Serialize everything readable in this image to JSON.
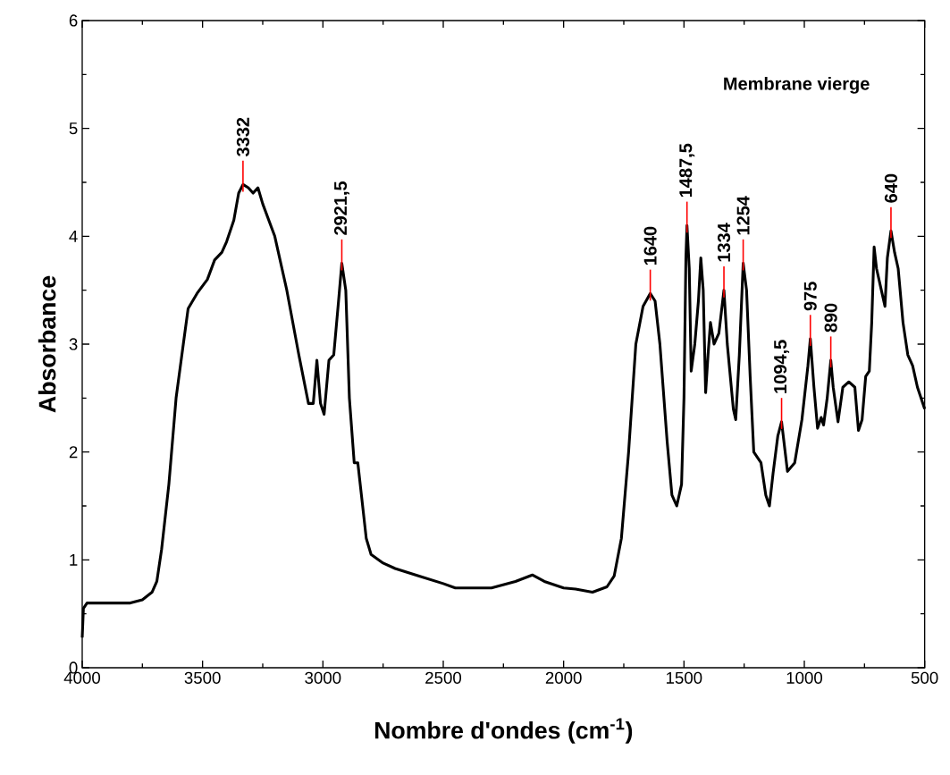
{
  "chart_data": {
    "type": "line",
    "title": "Membrane vierge",
    "xlabel": "Nombre d'ondes (cm$^{-1}$)",
    "ylabel": "Absorbance",
    "xlim": [
      4000,
      500
    ],
    "ylim": [
      0,
      6
    ],
    "xticks": [
      4000,
      3500,
      3000,
      2500,
      2000,
      1500,
      1000,
      500
    ],
    "yticks": [
      0,
      1,
      2,
      3,
      4,
      5,
      6
    ],
    "x": [
      4000,
      3995,
      3980,
      3900,
      3800,
      3750,
      3710,
      3690,
      3670,
      3640,
      3610,
      3580,
      3560,
      3520,
      3480,
      3450,
      3420,
      3400,
      3370,
      3350,
      3332,
      3310,
      3290,
      3270,
      3250,
      3200,
      3150,
      3100,
      3060,
      3040,
      3025,
      3010,
      2995,
      2975,
      2955,
      2935,
      2921.5,
      2905,
      2890,
      2870,
      2855,
      2840,
      2820,
      2800,
      2750,
      2700,
      2600,
      2500,
      2450,
      2300,
      2200,
      2130,
      2080,
      2000,
      1950,
      1880,
      1820,
      1790,
      1760,
      1730,
      1700,
      1670,
      1640,
      1620,
      1600,
      1570,
      1550,
      1530,
      1510,
      1500,
      1492,
      1487.5,
      1478,
      1470,
      1455,
      1440,
      1430,
      1420,
      1410,
      1400,
      1390,
      1375,
      1355,
      1334,
      1320,
      1295,
      1285,
      1270,
      1254,
      1240,
      1225,
      1210,
      1180,
      1160,
      1145,
      1130,
      1110,
      1094.5,
      1070,
      1040,
      1010,
      985,
      975,
      960,
      945,
      930,
      920,
      905,
      890,
      880,
      860,
      840,
      815,
      790,
      775,
      760,
      745,
      730,
      720,
      710,
      700,
      680,
      665,
      655,
      640,
      625,
      610,
      590,
      570,
      550,
      530,
      500
    ],
    "series": [
      {
        "color": "#000000",
        "values": [
          0.28,
          0.55,
          0.6,
          0.6,
          0.6,
          0.63,
          0.7,
          0.8,
          1.1,
          1.7,
          2.5,
          3.0,
          3.33,
          3.48,
          3.6,
          3.78,
          3.85,
          3.95,
          4.15,
          4.4,
          4.48,
          4.45,
          4.4,
          4.45,
          4.3,
          4.0,
          3.5,
          2.9,
          2.45,
          2.45,
          2.85,
          2.45,
          2.35,
          2.85,
          2.9,
          3.4,
          3.75,
          3.5,
          2.5,
          1.9,
          1.9,
          1.6,
          1.2,
          1.05,
          0.97,
          0.92,
          0.85,
          0.78,
          0.74,
          0.74,
          0.8,
          0.86,
          0.8,
          0.74,
          0.73,
          0.7,
          0.75,
          0.85,
          1.2,
          2.0,
          3.0,
          3.35,
          3.47,
          3.4,
          3.0,
          2.1,
          1.6,
          1.5,
          1.7,
          2.5,
          3.8,
          4.1,
          3.7,
          2.75,
          3.0,
          3.4,
          3.8,
          3.5,
          2.55,
          2.9,
          3.2,
          3.0,
          3.1,
          3.5,
          3.0,
          2.4,
          2.3,
          2.9,
          3.75,
          3.5,
          2.7,
          2.0,
          1.9,
          1.6,
          1.5,
          1.8,
          2.15,
          2.28,
          1.82,
          1.9,
          2.3,
          2.8,
          3.05,
          2.6,
          2.22,
          2.32,
          2.25,
          2.5,
          2.85,
          2.6,
          2.28,
          2.6,
          2.65,
          2.6,
          2.2,
          2.3,
          2.7,
          2.75,
          3.2,
          3.9,
          3.7,
          3.5,
          3.35,
          3.8,
          4.05,
          3.85,
          3.7,
          3.2,
          2.9,
          2.8,
          2.6,
          2.4
        ]
      }
    ],
    "annotations": [
      {
        "text": "3332",
        "x": 3332,
        "y": 4.48
      },
      {
        "text": "2921,5",
        "x": 2921.5,
        "y": 3.75
      },
      {
        "text": "1640",
        "x": 1640,
        "y": 3.47
      },
      {
        "text": "1487,5",
        "x": 1487.5,
        "y": 4.1
      },
      {
        "text": "1334",
        "x": 1334,
        "y": 3.5
      },
      {
        "text": "1254",
        "x": 1254,
        "y": 3.75
      },
      {
        "text": "1094,5",
        "x": 1094.5,
        "y": 2.28
      },
      {
        "text": "975",
        "x": 975,
        "y": 3.05
      },
      {
        "text": "890",
        "x": 890,
        "y": 2.85
      },
      {
        "text": "640",
        "x": 640,
        "y": 4.05
      }
    ]
  }
}
